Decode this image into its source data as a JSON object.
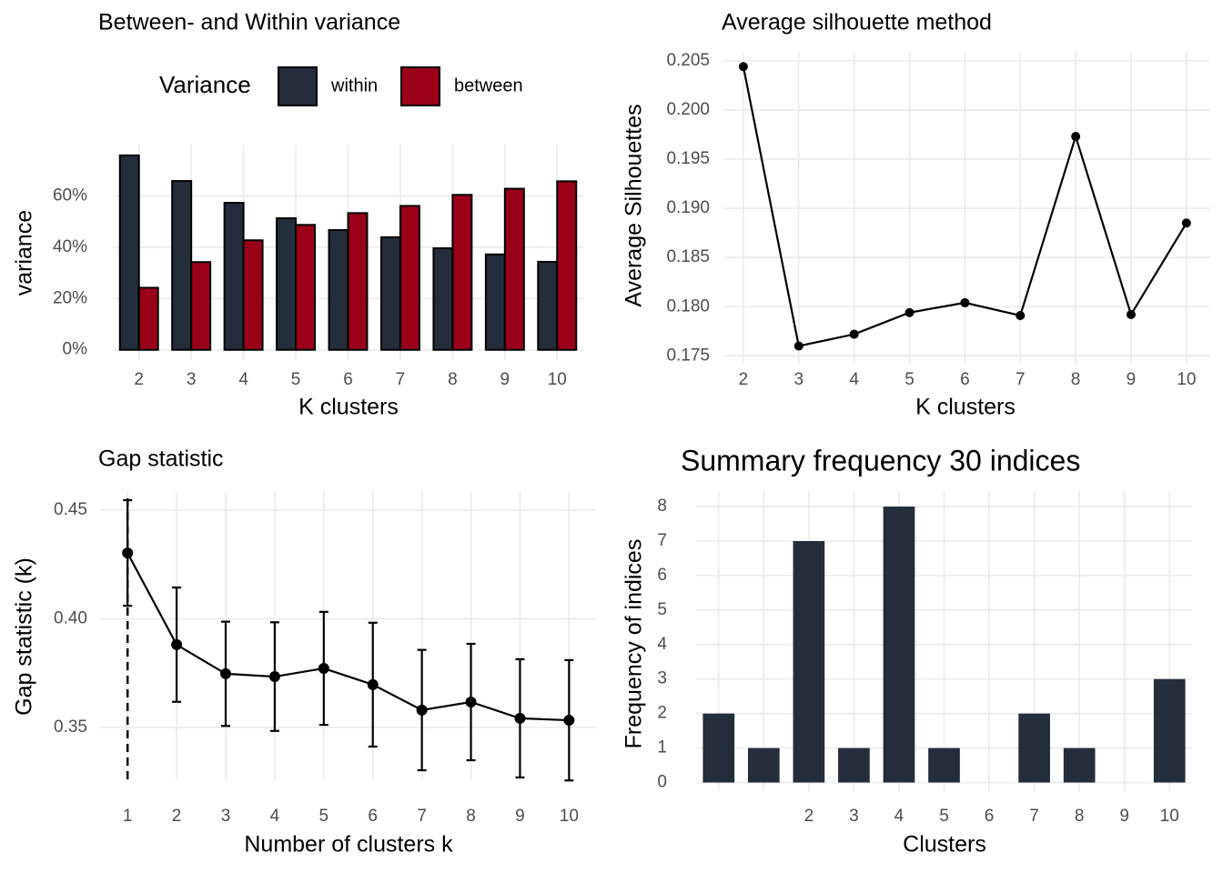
{
  "chart_data": [
    {
      "type": "bar",
      "title": "Between- and Within variance",
      "legend_title": "Variance",
      "x_label": "K clusters",
      "y_label": "variance",
      "categories": [
        "2",
        "3",
        "4",
        "5",
        "6",
        "7",
        "8",
        "9",
        "10"
      ],
      "series": [
        {
          "name": "within",
          "color": "#232d3c",
          "values": [
            75.8,
            65.8,
            57.3,
            51.3,
            46.7,
            43.9,
            39.6,
            37.2,
            34.3
          ]
        },
        {
          "name": "between",
          "color": "#9b0019",
          "values": [
            24.2,
            34.2,
            42.7,
            48.7,
            53.3,
            56.1,
            60.4,
            62.8,
            65.7
          ]
        }
      ],
      "ylim": [
        -4,
        80
      ],
      "yticks": [
        {
          "value": 0,
          "label": "0%"
        },
        {
          "value": 20,
          "label": "20%"
        },
        {
          "value": 40,
          "label": "40%"
        },
        {
          "value": 60,
          "label": "60%"
        }
      ],
      "grid": true,
      "legend": "top"
    },
    {
      "type": "line",
      "title": "Average silhouette method",
      "x_label": "K clusters",
      "y_label": "Average Silhouettes",
      "x": [
        2,
        3,
        4,
        5,
        6,
        7,
        8,
        9,
        10
      ],
      "values": [
        0.2044,
        0.176,
        0.1772,
        0.1794,
        0.1804,
        0.1791,
        0.1973,
        0.1792,
        0.1885
      ],
      "color": "#000000",
      "xlim": [
        1.64,
        10.43
      ],
      "xticks": [
        2,
        3,
        4,
        5,
        6,
        7,
        8,
        9,
        10
      ],
      "ylim": [
        0.1742,
        0.2059
      ],
      "yticks": [
        0.175,
        {
          "value": 0.18,
          "label": "0.180"
        },
        0.185,
        {
          "value": 0.19,
          "label": "0.190"
        },
        0.195,
        {
          "value": 0.2,
          "label": "0.200"
        },
        0.205
      ],
      "grid": true
    },
    {
      "type": "line",
      "title": "Gap statistic",
      "x_label": "Number of clusters k",
      "y_label": "Gap statistic (k)",
      "x": [
        1,
        2,
        3,
        4,
        5,
        6,
        7,
        8,
        9,
        10
      ],
      "values": [
        0.4303,
        0.3881,
        0.3747,
        0.3734,
        0.3772,
        0.3697,
        0.358,
        0.3617,
        0.3542,
        0.3533
      ],
      "errors": [
        0.0243,
        0.0263,
        0.024,
        0.025,
        0.026,
        0.0285,
        0.0277,
        0.0268,
        0.0272,
        0.0277
      ],
      "vline": 1,
      "color": "#000000",
      "xlim": [
        0.44,
        10.55
      ],
      "xticks": [
        1,
        2,
        3,
        4,
        5,
        6,
        7,
        8,
        9,
        10
      ],
      "ylim": [
        0.3257,
        0.4588
      ],
      "yticks": [
        0.35,
        {
          "value": 0.4,
          "label": "0.40"
        },
        0.45
      ],
      "grid": true
    },
    {
      "type": "bar",
      "title": "Summary frequency 30 indices",
      "x_label": "Clusters",
      "y_label": "Frequency of indices",
      "categories": [
        null,
        null,
        "2",
        "3",
        "4",
        "5",
        "6",
        "7",
        "8",
        "9",
        "10"
      ],
      "values": [
        2,
        1,
        7,
        1,
        8,
        1,
        0,
        2,
        1,
        0,
        3
      ],
      "color": "#232d3c",
      "ylim": [
        -0.25,
        8.45
      ],
      "yticks": [
        0,
        1,
        2,
        3,
        4,
        5,
        6,
        7,
        8
      ],
      "grid": true
    }
  ]
}
